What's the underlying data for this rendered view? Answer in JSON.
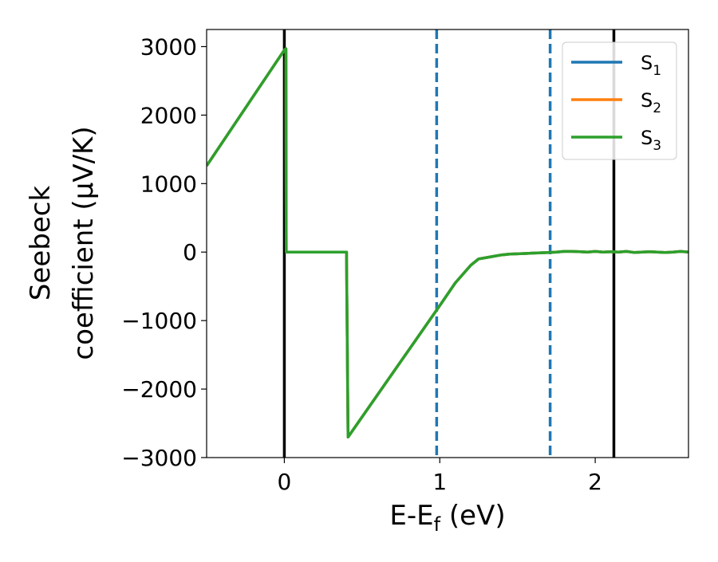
{
  "chart_data": {
    "type": "line",
    "xlabel": "E-E",
    "xlabel_sub": "f",
    "xlabel_unit": " (eV)",
    "ylabel_line1": "Seebeck",
    "ylabel_line2": "coefficient  (μV/K)",
    "xlim": [
      -0.5,
      2.6
    ],
    "ylim": [
      -3000,
      3250
    ],
    "x_ticks": [
      0,
      1,
      2
    ],
    "y_ticks": [
      -3000,
      -2000,
      -1000,
      0,
      1000,
      2000,
      3000
    ],
    "grid": false,
    "legend_position": "top-right",
    "series": [
      {
        "name": "S",
        "sub": "1",
        "color": "#1f77b4",
        "x": [
          -0.5,
          0.0,
          0.01,
          0.012,
          0.4,
          0.4,
          0.41,
          1.0,
          1.1,
          1.2,
          1.25,
          1.3,
          1.35,
          1.4,
          1.45,
          1.5,
          1.55,
          1.6,
          1.65,
          1.7,
          1.75,
          1.8,
          1.85,
          1.9,
          1.95,
          2.0,
          2.05,
          2.1,
          2.15,
          2.2,
          2.25,
          2.3,
          2.35,
          2.4,
          2.45,
          2.5,
          2.55,
          2.6
        ],
        "y": [
          1260,
          2950,
          2970,
          0,
          0,
          -100,
          -2700,
          -780,
          -450,
          -190,
          -100,
          -80,
          -60,
          -40,
          -30,
          -25,
          -20,
          -15,
          -10,
          -5,
          0,
          10,
          10,
          5,
          0,
          10,
          0,
          5,
          0,
          10,
          -5,
          0,
          5,
          0,
          -5,
          0,
          10,
          0
        ]
      },
      {
        "name": "S",
        "sub": "2",
        "color": "#ff7f0e",
        "x": [
          -0.5,
          0.0,
          0.01,
          0.012,
          0.4,
          0.4,
          0.41,
          1.0,
          1.1,
          1.2,
          1.25,
          1.3,
          1.35,
          1.4,
          1.45,
          1.5,
          1.55,
          1.6,
          1.65,
          1.7,
          1.75,
          1.8,
          1.85,
          1.9,
          1.95,
          2.0,
          2.05,
          2.1,
          2.15,
          2.2,
          2.25,
          2.3,
          2.35,
          2.4,
          2.45,
          2.5,
          2.55,
          2.6
        ],
        "y": [
          1260,
          2950,
          2970,
          0,
          0,
          -100,
          -2700,
          -780,
          -450,
          -190,
          -100,
          -80,
          -60,
          -40,
          -30,
          -25,
          -20,
          -15,
          -10,
          -5,
          0,
          10,
          10,
          5,
          0,
          10,
          0,
          5,
          0,
          10,
          -5,
          0,
          5,
          0,
          -5,
          0,
          10,
          0
        ]
      },
      {
        "name": "S",
        "sub": "3",
        "color": "#2ca02c",
        "x": [
          -0.5,
          0.0,
          0.01,
          0.012,
          0.4,
          0.4,
          0.41,
          1.0,
          1.1,
          1.2,
          1.25,
          1.3,
          1.35,
          1.4,
          1.45,
          1.5,
          1.55,
          1.6,
          1.65,
          1.7,
          1.75,
          1.8,
          1.85,
          1.9,
          1.95,
          2.0,
          2.05,
          2.1,
          2.15,
          2.2,
          2.25,
          2.3,
          2.35,
          2.4,
          2.45,
          2.5,
          2.55,
          2.6
        ],
        "y": [
          1260,
          2950,
          2970,
          0,
          0,
          -100,
          -2700,
          -780,
          -450,
          -190,
          -100,
          -80,
          -60,
          -40,
          -30,
          -25,
          -20,
          -15,
          -10,
          -5,
          0,
          10,
          10,
          5,
          0,
          10,
          0,
          5,
          0,
          10,
          -5,
          0,
          5,
          0,
          -5,
          0,
          10,
          0
        ]
      }
    ],
    "vertical_lines": [
      {
        "x": 0.0,
        "style": "solid",
        "color": "#000000"
      },
      {
        "x": 2.12,
        "style": "solid",
        "color": "#000000"
      },
      {
        "x": 0.98,
        "style": "dashed",
        "color": "#1f77b4"
      },
      {
        "x": 1.71,
        "style": "dashed",
        "color": "#1f77b4"
      }
    ]
  }
}
